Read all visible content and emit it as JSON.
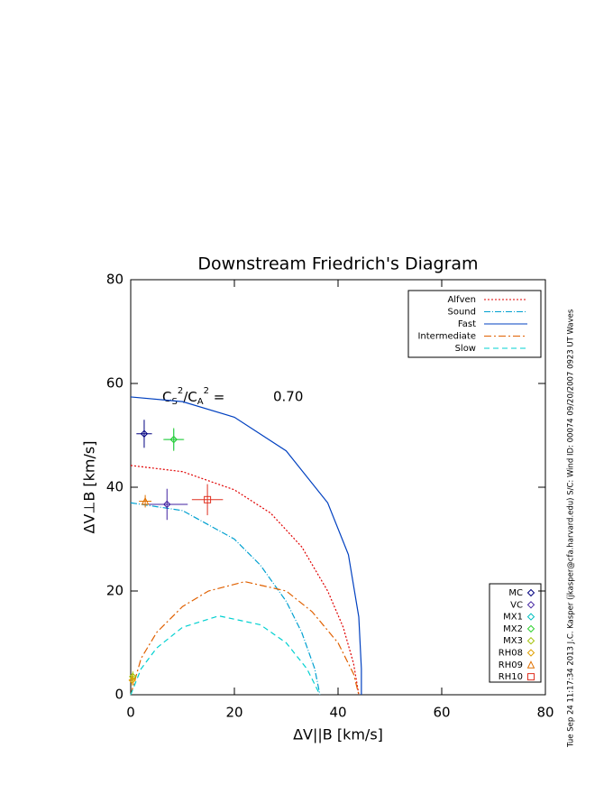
{
  "chart_data": {
    "type": "line",
    "title": "Downstream Friedrich's Diagram",
    "xlabel": "ΔV||B [km/s]",
    "ylabel": "ΔV⊥B [km/s]",
    "xlim": [
      0,
      80
    ],
    "ylim": [
      0,
      80
    ],
    "xticks": [
      0,
      20,
      40,
      60,
      80
    ],
    "yticks": [
      0,
      20,
      40,
      60,
      80
    ],
    "annotation": {
      "parts": [
        "C",
        "S",
        "2",
        "/C",
        "A",
        "2",
        " ="
      ],
      "value": {
        "value": 0.7,
        "label": "0.70"
      }
    },
    "side_text": "Tue Sep 24 11:17:34 2013   J.C. Kasper (jkasper@cfa.harvard.edu)   S/C: Wind  ID: 00074 09/20/2007   0923 UT Waves",
    "series": [
      {
        "name": "Alfven",
        "color": "#e00000",
        "dash": "2,2",
        "x": [
          0,
          10,
          20,
          27,
          33,
          38,
          41,
          43,
          44
        ],
        "y": [
          44.2,
          43,
          39.5,
          35,
          28.5,
          20,
          13,
          6,
          0
        ]
      },
      {
        "name": "Sound",
        "color": "#00a0d0",
        "dash": "7,2,1,2",
        "x": [
          0,
          10,
          20,
          25,
          30,
          33,
          35.5,
          36.5
        ],
        "y": [
          37,
          35.5,
          30,
          25,
          18,
          12,
          5,
          0
        ]
      },
      {
        "name": "Fast",
        "color": "#0040c0",
        "dash": "none",
        "x": [
          0,
          10,
          20,
          30,
          38,
          42,
          44,
          44.5,
          44.5
        ],
        "y": [
          57.4,
          56.5,
          53.5,
          47,
          37,
          27,
          15,
          5,
          0
        ]
      },
      {
        "name": "Intermediate",
        "color": "#e06000",
        "dash": "8,3,2,3",
        "x": [
          0,
          2,
          5,
          10,
          15,
          22,
          30,
          35,
          40,
          43,
          44
        ],
        "y": [
          0,
          7,
          12,
          17,
          20,
          21.8,
          20,
          16,
          10,
          4,
          0
        ]
      },
      {
        "name": "Slow",
        "color": "#00d0d0",
        "dash": "6,4",
        "x": [
          0,
          2,
          5,
          10,
          17,
          25,
          30,
          34,
          36.5
        ],
        "y": [
          0,
          5,
          9,
          13,
          15.2,
          13.5,
          10,
          5,
          0
        ]
      }
    ],
    "points": [
      {
        "name": "MC",
        "color": "#000080",
        "marker": "diamond",
        "x": 2.6,
        "y": 50.3,
        "xerr": 1.5,
        "yerr": 2.7
      },
      {
        "name": "VC",
        "color": "#4020a0",
        "marker": "diamond",
        "x": 7,
        "y": 36.7,
        "xerr": 4,
        "yerr": 3
      },
      {
        "name": "MX1",
        "color": "#00c0c0",
        "marker": "diamond",
        "x": 8.3,
        "y": 49.2,
        "xerr": 1.8,
        "yerr": 2
      },
      {
        "name": "MX2",
        "color": "#30d030",
        "marker": "diamond",
        "x": 8.3,
        "y": 49.2,
        "xerr": 2,
        "yerr": 2.2
      },
      {
        "name": "MX3",
        "color": "#a0c000",
        "marker": "diamond",
        "x": 0.4,
        "y": 3.5,
        "xerr": 0.4,
        "yerr": 1
      },
      {
        "name": "RH08",
        "color": "#e0a000",
        "marker": "diamond",
        "x": 0.3,
        "y": 2.8,
        "xerr": 0.4,
        "yerr": 1
      },
      {
        "name": "RH09",
        "color": "#e07000",
        "marker": "triangle",
        "x": 2.8,
        "y": 37.3,
        "xerr": 1.2,
        "yerr": 1.2
      },
      {
        "name": "RH10",
        "color": "#e03020",
        "marker": "square",
        "x": 14.8,
        "y": 37.6,
        "xerr": 3,
        "yerr": 3
      }
    ]
  }
}
